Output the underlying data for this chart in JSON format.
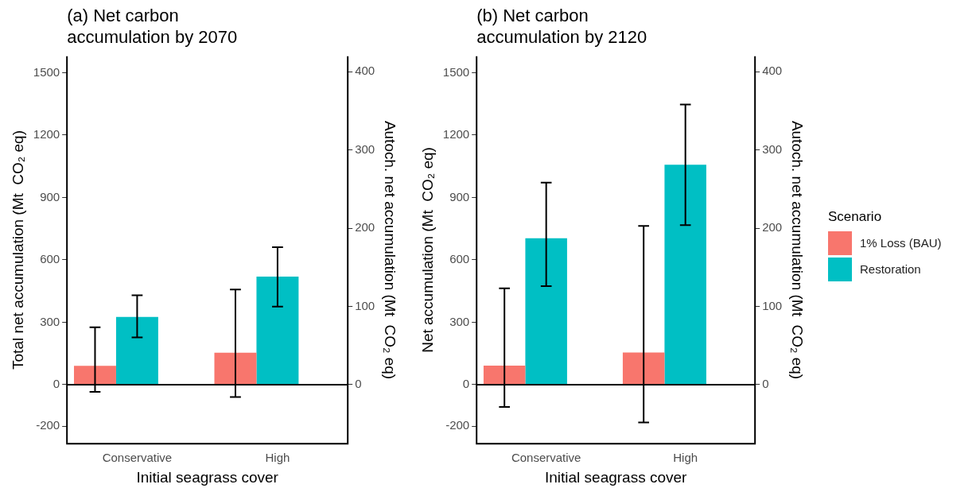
{
  "chart_data": [
    {
      "type": "bar",
      "title": "(a) Net carbon\naccumulation by 2070",
      "xlabel": "Initial seagrass cover",
      "ylabel": "Total net accumulation (Mt  CO₂ eq)",
      "y2label": "Autoch. net accumulation (Mt  CO₂ eq)",
      "categories": [
        "Conservative",
        "High"
      ],
      "series": [
        {
          "color": "#f8766d",
          "values": [
            90,
            153
          ],
          "errors": [
            [
              -35,
              276
            ],
            [
              -60,
              457
            ]
          ]
        },
        {
          "color": "#00bfc4",
          "values": [
            325,
            519
          ],
          "errors": [
            [
              227,
              430
            ],
            [
              375,
              661
            ]
          ]
        }
      ],
      "ylim": [
        -284,
        1579
      ],
      "yticks": [
        -200,
        0,
        300,
        600,
        900,
        1200,
        1500
      ],
      "y2lim": [
        -75.4,
        419.6
      ],
      "y2ticks": [
        0,
        100,
        200,
        300,
        400
      ],
      "ref_lines": [
        {
          "axis": "y",
          "value": 0,
          "color": "#000000"
        }
      ],
      "grid": false,
      "legend": false
    },
    {
      "type": "bar",
      "title": "(b) Net carbon\naccumulation by 2120",
      "xlabel": "Initial seagrass cover",
      "ylabel": "Net accumulation (Mt  CO₂ eq)",
      "y2label": "Autoch. net accumulation (Mt  CO₂ eq)",
      "legend_title": "Scenario",
      "categories": [
        "Conservative",
        "High"
      ],
      "series": [
        {
          "name": "1% Loss (BAU)",
          "color": "#f8766d",
          "values": [
            91,
            154
          ],
          "errors": [
            [
              -107,
              463
            ],
            [
              -182,
              763
            ]
          ]
        },
        {
          "name": "Restoration",
          "color": "#00bfc4",
          "values": [
            704,
            1057
          ],
          "errors": [
            [
              474,
              971
            ],
            [
              767,
              1347
            ]
          ]
        }
      ],
      "ylim": [
        -284,
        1579
      ],
      "yticks": [
        -200,
        0,
        300,
        600,
        900,
        1200,
        1500
      ],
      "y2lim": [
        -75.4,
        419.6
      ],
      "y2ticks": [
        0,
        100,
        200,
        300,
        400
      ],
      "ref_lines": [
        {
          "axis": "y",
          "value": 0,
          "color": "#000000"
        }
      ],
      "grid": false,
      "legend": "right"
    }
  ]
}
